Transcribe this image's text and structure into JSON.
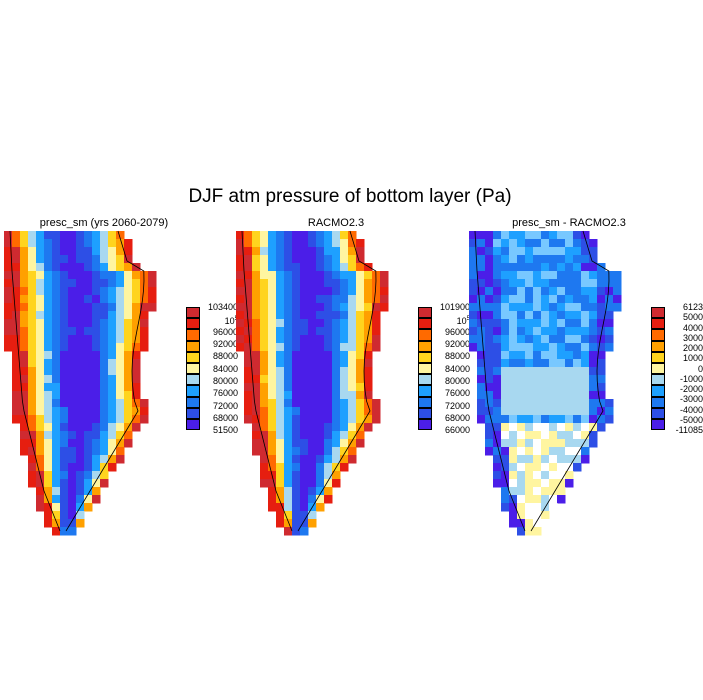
{
  "figure": {
    "title": "DJF atm pressure of bottom layer (Pa)"
  },
  "chart_data": [
    {
      "type": "heatmap",
      "panel": "presc_sm (yrs 2060-2079)",
      "colorbar": {
        "colors": [
          "#4b1ee8",
          "#2d4fe6",
          "#1e78f0",
          "#1ea0ff",
          "#a8d8f0",
          "#fff5a0",
          "#ffd41e",
          "#ffa000",
          "#ff6a00",
          "#e61e10",
          "#cf2a30"
        ],
        "labels": [
          "51500",
          "68000",
          "72000",
          "76000",
          "80000",
          "84000",
          "88000",
          "92000",
          "96000",
          "10^5",
          "103400"
        ]
      }
    },
    {
      "type": "heatmap",
      "panel": "RACMO2.3",
      "colorbar": {
        "colors": [
          "#4b1ee8",
          "#2d4fe6",
          "#1e78f0",
          "#1ea0ff",
          "#a8d8f0",
          "#fff5a0",
          "#ffd41e",
          "#ffa000",
          "#ff6a00",
          "#e61e10",
          "#cf2a30"
        ],
        "labels": [
          "66000",
          "68000",
          "72000",
          "76000",
          "80000",
          "84000",
          "88000",
          "92000",
          "96000",
          "10^5",
          "101900"
        ]
      }
    },
    {
      "type": "heatmap",
      "panel": "presc_sm - RACMO2.3",
      "colorbar": {
        "colors": [
          "#4b1ee8",
          "#2d4fe6",
          "#1e78f0",
          "#1ea0ff",
          "#a8d8f0",
          "#fff5a0",
          "#ffd41e",
          "#ffa000",
          "#ff6a00",
          "#e61e10",
          "#cf2a30"
        ],
        "labels": [
          "-11085",
          "-5000",
          "-4000",
          "-3000",
          "-2000",
          "-1000",
          "0",
          "1000",
          "2000",
          "3000",
          "4000",
          "5000",
          "6123"
        ]
      }
    }
  ]
}
